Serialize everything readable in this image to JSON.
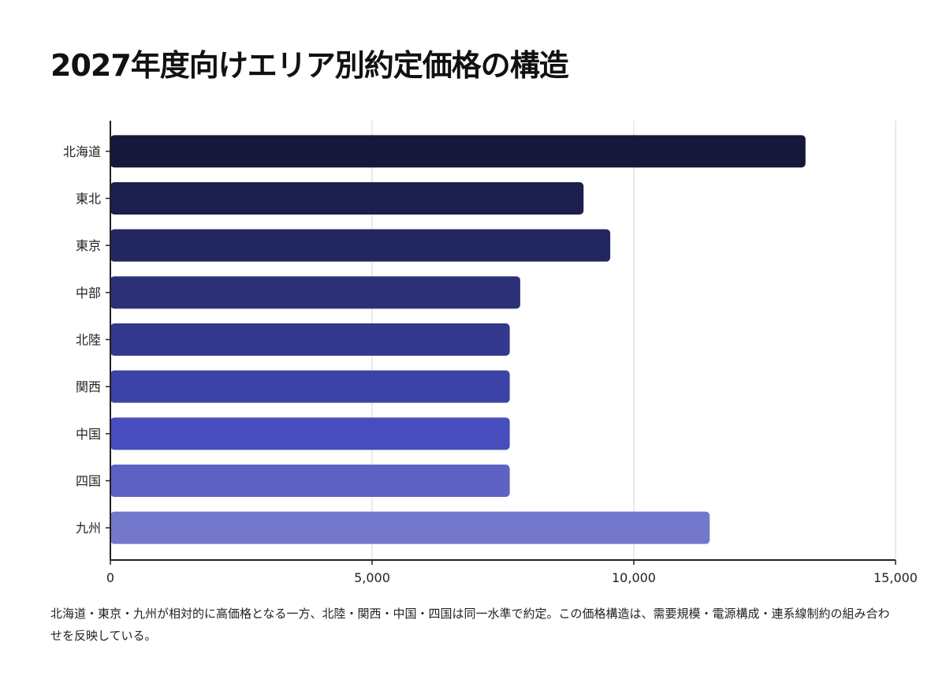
{
  "chart_data": {
    "type": "bar",
    "orientation": "horizontal",
    "title": "2027年度向けエリア別約定価格の構造",
    "categories": [
      "北海道",
      "東北",
      "東京",
      "中部",
      "北陸",
      "関西",
      "中国",
      "四国",
      "九州"
    ],
    "values": [
      13280,
      9040,
      9550,
      7830,
      7630,
      7630,
      7630,
      7630,
      11450
    ],
    "xlim": [
      0,
      15000
    ],
    "xticks": [
      0,
      5000,
      10000,
      15000
    ],
    "xtick_labels": [
      "0",
      "5,000",
      "10,000",
      "15,000"
    ],
    "xlabel": "",
    "ylabel": "",
    "grid": "vertical",
    "colors": [
      "#17173a",
      "#1d1f4f",
      "#23275f",
      "#2b3077",
      "#33398d",
      "#3d43a6",
      "#474dbc",
      "#5e62c4",
      "#7478cc"
    ]
  },
  "caption": "北海道・東京・九州が相対的に高価格となる一方、北陸・関西・中国・四国は同一水準で約定。この価格構造は、需要規模・電源構成・連系線制約の組み合わせを反映している。"
}
